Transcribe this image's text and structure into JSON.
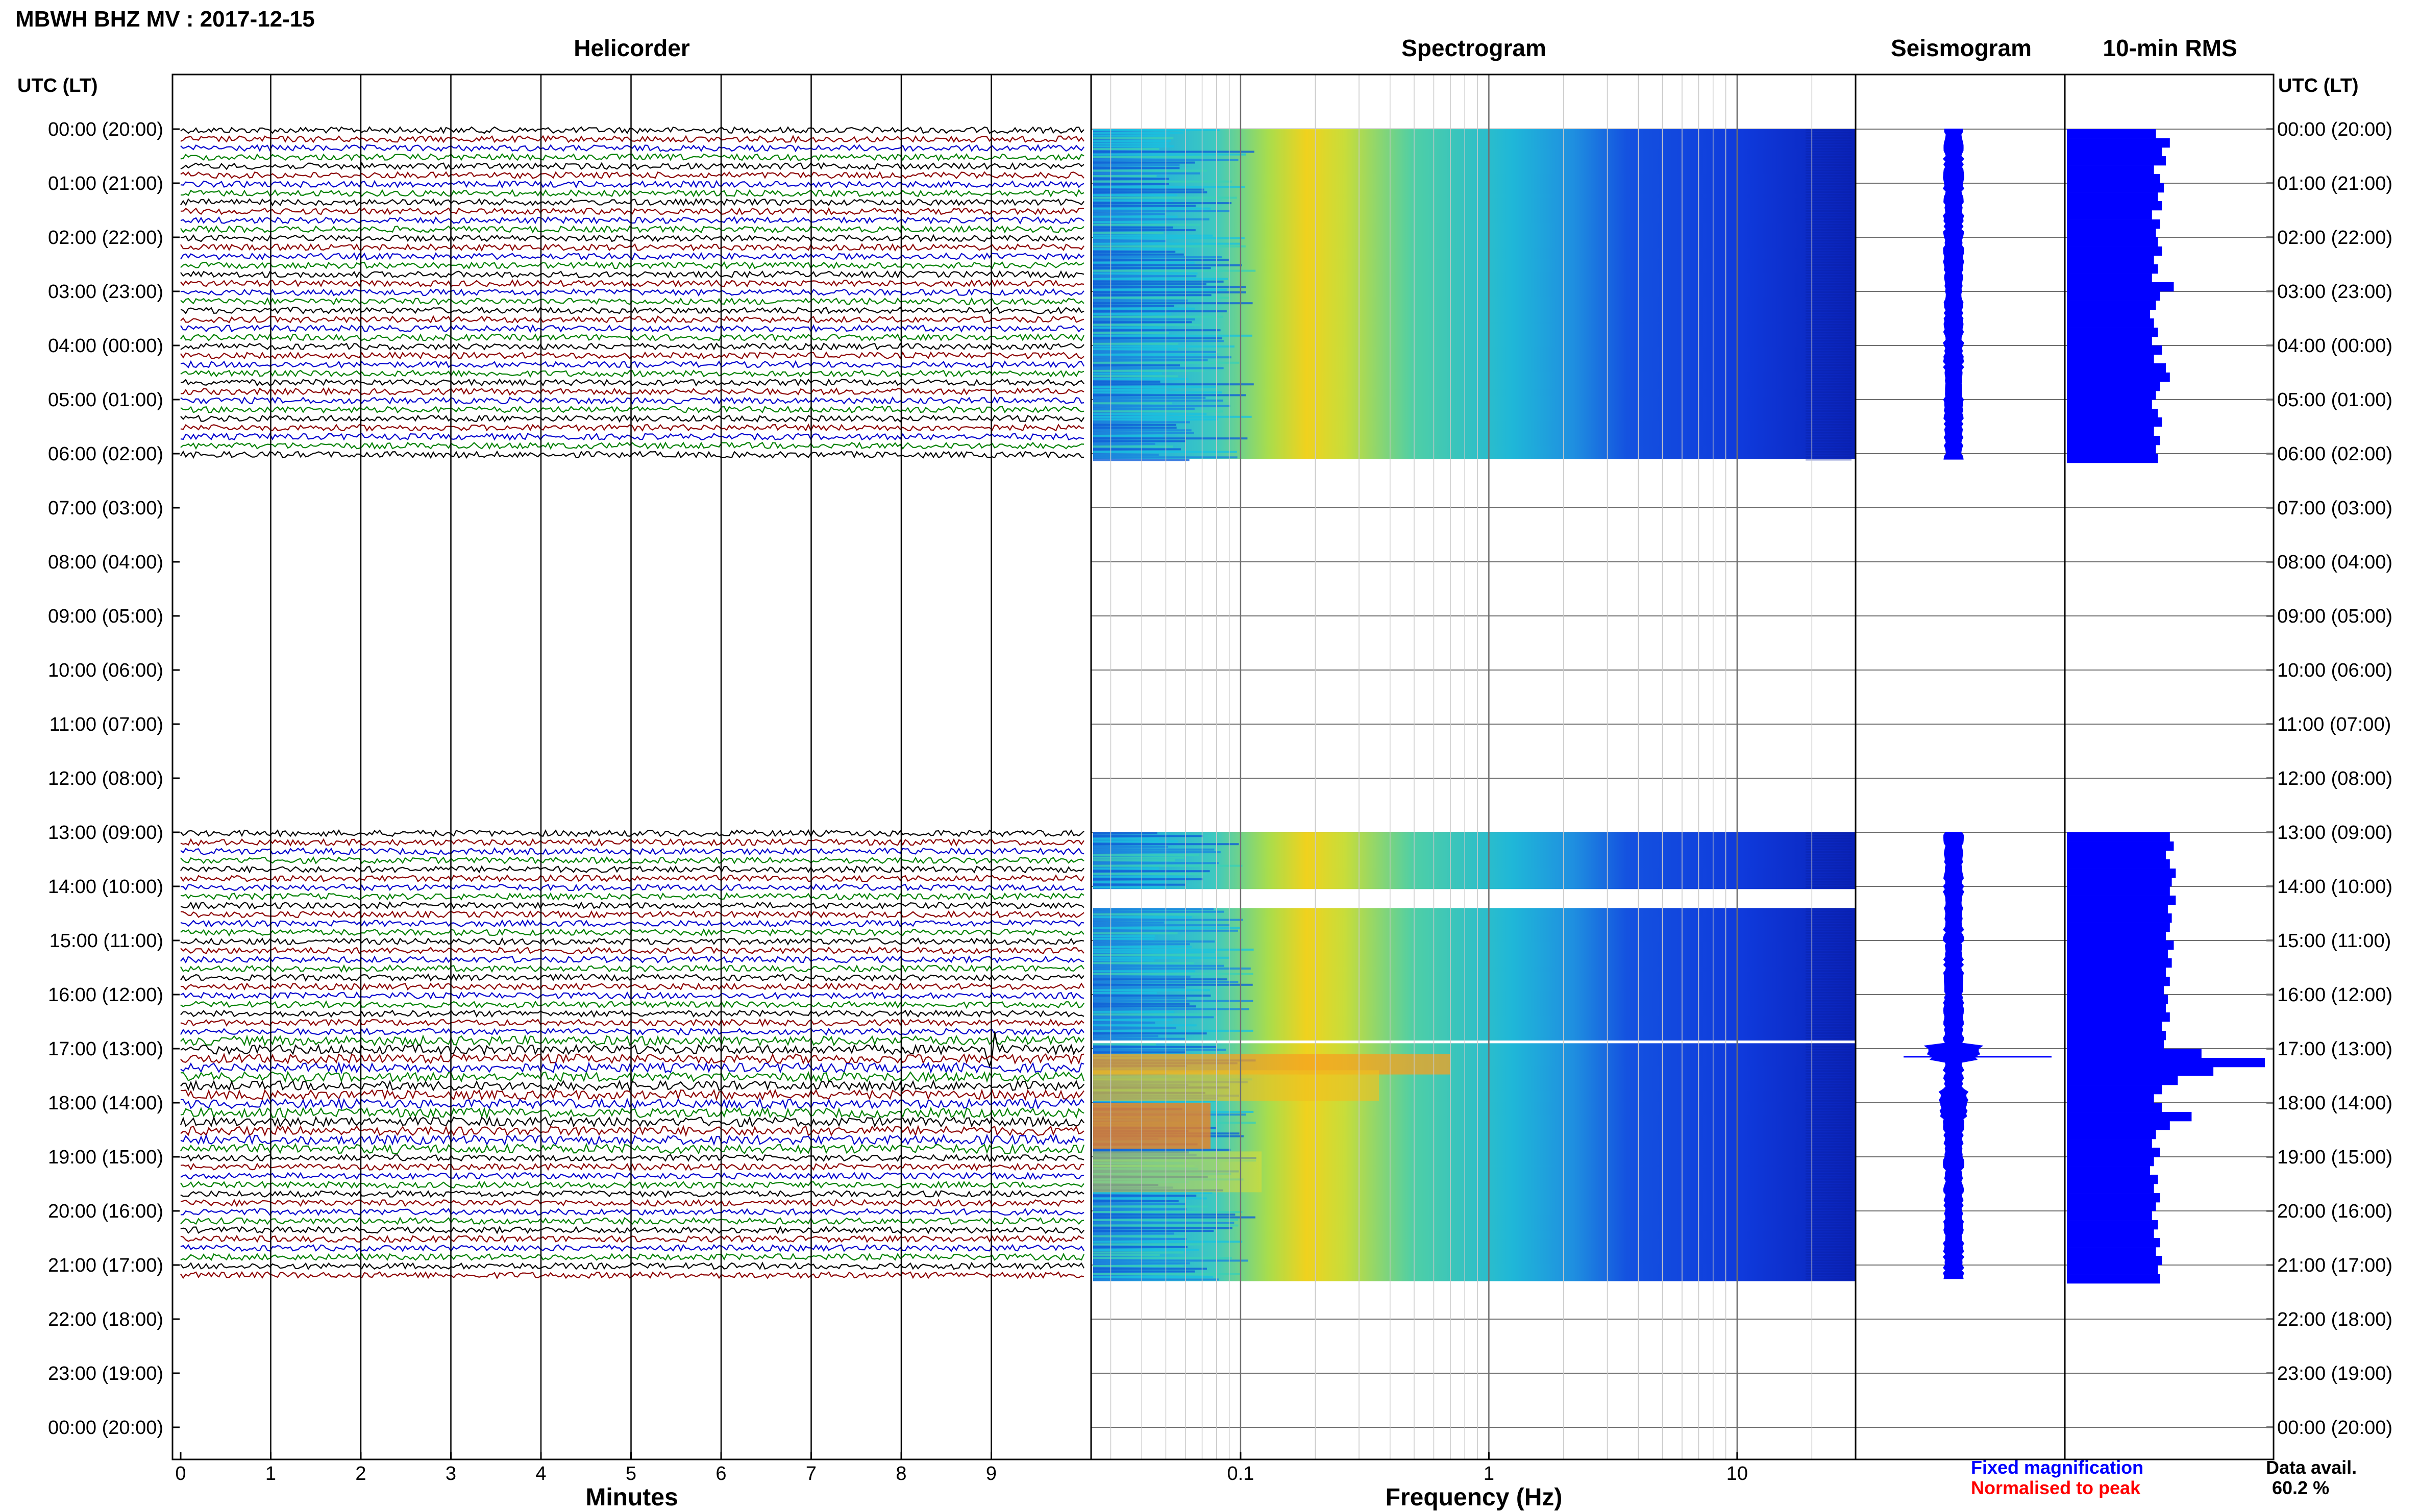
{
  "title": "MBWH BHZ MV : 2017-12-15",
  "panels": {
    "helicorder": "Helicorder",
    "spectrogram": "Spectrogram",
    "seismogram": "Seismogram",
    "rms": "10-min RMS"
  },
  "time_axis_label": "UTC (LT)",
  "time_ticks": [
    "00:00 (20:00)",
    "01:00 (21:00)",
    "02:00 (22:00)",
    "03:00 (23:00)",
    "04:00 (00:00)",
    "05:00 (01:00)",
    "06:00 (02:00)",
    "07:00 (03:00)",
    "08:00 (04:00)",
    "09:00 (05:00)",
    "10:00 (06:00)",
    "11:00 (07:00)",
    "12:00 (08:00)",
    "13:00 (09:00)",
    "14:00 (10:00)",
    "15:00 (11:00)",
    "16:00 (12:00)",
    "17:00 (13:00)",
    "18:00 (14:00)",
    "19:00 (15:00)",
    "20:00 (16:00)",
    "21:00 (17:00)",
    "22:00 (18:00)",
    "23:00 (19:00)",
    "00:00 (20:00)"
  ],
  "helicorder_xlabel": "Minutes",
  "helicorder_xticks": [
    "0",
    "1",
    "2",
    "3",
    "4",
    "5",
    "6",
    "7",
    "8",
    "9"
  ],
  "spectrogram_xlabel": "Frequency (Hz)",
  "spectrogram_xticks": [
    "0.1",
    "1",
    "10"
  ],
  "legend": {
    "fixed": "Fixed magnification",
    "normalised": "Normalised to peak",
    "fixed_color": "#0000ff",
    "normalised_color": "#ff0000"
  },
  "data_avail_label": "Data avail.",
  "data_avail_value": "60.2 %",
  "trace_colors": [
    "#000000",
    "#8b0000",
    "#0000cd",
    "#008000"
  ],
  "chart_data": {
    "type": "heatmap",
    "title": "MBWH BHZ MV : 2017-12-15",
    "time_range_hours": [
      0,
      24
    ],
    "data_segments_utc_hours": [
      [
        0.0,
        6.1
      ],
      [
        13.0,
        21.3
      ]
    ],
    "spectrogram_gaps_utc_hours": [
      [
        0.9,
        0.95
      ],
      [
        14.05,
        14.4
      ],
      [
        16.85,
        16.9
      ]
    ],
    "spectrogram_freq_range_hz": [
      0.025,
      30
    ],
    "spectrogram_peak_freq_hz": 0.2,
    "rms_10min": [
      {
        "utc_hour": 0.0,
        "value": 0.45
      },
      {
        "utc_hour": 0.17,
        "value": 0.52
      },
      {
        "utc_hour": 0.33,
        "value": 0.48
      },
      {
        "utc_hour": 0.5,
        "value": 0.5
      },
      {
        "utc_hour": 0.67,
        "value": 0.44
      },
      {
        "utc_hour": 0.83,
        "value": 0.47
      },
      {
        "utc_hour": 1.0,
        "value": 0.49
      },
      {
        "utc_hour": 1.17,
        "value": 0.46
      },
      {
        "utc_hour": 1.33,
        "value": 0.48
      },
      {
        "utc_hour": 1.5,
        "value": 0.43
      },
      {
        "utc_hour": 1.67,
        "value": 0.47
      },
      {
        "utc_hour": 1.83,
        "value": 0.45
      },
      {
        "utc_hour": 2.0,
        "value": 0.46
      },
      {
        "utc_hour": 2.17,
        "value": 0.48
      },
      {
        "utc_hour": 2.33,
        "value": 0.44
      },
      {
        "utc_hour": 2.5,
        "value": 0.46
      },
      {
        "utc_hour": 2.67,
        "value": 0.43
      },
      {
        "utc_hour": 2.83,
        "value": 0.54
      },
      {
        "utc_hour": 3.0,
        "value": 0.47
      },
      {
        "utc_hour": 3.17,
        "value": 0.45
      },
      {
        "utc_hour": 3.33,
        "value": 0.42
      },
      {
        "utc_hour": 3.5,
        "value": 0.44
      },
      {
        "utc_hour": 3.67,
        "value": 0.46
      },
      {
        "utc_hour": 3.83,
        "value": 0.43
      },
      {
        "utc_hour": 4.0,
        "value": 0.48
      },
      {
        "utc_hour": 4.17,
        "value": 0.44
      },
      {
        "utc_hour": 4.33,
        "value": 0.5
      },
      {
        "utc_hour": 4.5,
        "value": 0.52
      },
      {
        "utc_hour": 4.67,
        "value": 0.47
      },
      {
        "utc_hour": 4.83,
        "value": 0.45
      },
      {
        "utc_hour": 5.0,
        "value": 0.43
      },
      {
        "utc_hour": 5.17,
        "value": 0.46
      },
      {
        "utc_hour": 5.33,
        "value": 0.48
      },
      {
        "utc_hour": 5.5,
        "value": 0.44
      },
      {
        "utc_hour": 5.67,
        "value": 0.47
      },
      {
        "utc_hour": 5.83,
        "value": 0.45
      },
      {
        "utc_hour": 6.0,
        "value": 0.46
      },
      {
        "utc_hour": 13.0,
        "value": 0.52
      },
      {
        "utc_hour": 13.17,
        "value": 0.54
      },
      {
        "utc_hour": 13.33,
        "value": 0.5
      },
      {
        "utc_hour": 13.5,
        "value": 0.52
      },
      {
        "utc_hour": 13.67,
        "value": 0.55
      },
      {
        "utc_hour": 13.83,
        "value": 0.53
      },
      {
        "utc_hour": 14.0,
        "value": 0.52
      },
      {
        "utc_hour": 14.17,
        "value": 0.55
      },
      {
        "utc_hour": 14.33,
        "value": 0.51
      },
      {
        "utc_hour": 14.5,
        "value": 0.53
      },
      {
        "utc_hour": 14.67,
        "value": 0.52
      },
      {
        "utc_hour": 14.83,
        "value": 0.5
      },
      {
        "utc_hour": 15.0,
        "value": 0.54
      },
      {
        "utc_hour": 15.17,
        "value": 0.51
      },
      {
        "utc_hour": 15.33,
        "value": 0.53
      },
      {
        "utc_hour": 15.5,
        "value": 0.5
      },
      {
        "utc_hour": 15.67,
        "value": 0.52
      },
      {
        "utc_hour": 15.83,
        "value": 0.49
      },
      {
        "utc_hour": 16.0,
        "value": 0.51
      },
      {
        "utc_hour": 16.17,
        "value": 0.5
      },
      {
        "utc_hour": 16.33,
        "value": 0.52
      },
      {
        "utc_hour": 16.5,
        "value": 0.48
      },
      {
        "utc_hour": 16.67,
        "value": 0.5
      },
      {
        "utc_hour": 16.83,
        "value": 0.49
      },
      {
        "utc_hour": 17.0,
        "value": 0.68
      },
      {
        "utc_hour": 17.17,
        "value": 1.0
      },
      {
        "utc_hour": 17.33,
        "value": 0.74
      },
      {
        "utc_hour": 17.5,
        "value": 0.56
      },
      {
        "utc_hour": 17.67,
        "value": 0.48
      },
      {
        "utc_hour": 17.83,
        "value": 0.44
      },
      {
        "utc_hour": 18.0,
        "value": 0.48
      },
      {
        "utc_hour": 18.17,
        "value": 0.63
      },
      {
        "utc_hour": 18.33,
        "value": 0.52
      },
      {
        "utc_hour": 18.5,
        "value": 0.45
      },
      {
        "utc_hour": 18.67,
        "value": 0.43
      },
      {
        "utc_hour": 18.83,
        "value": 0.47
      },
      {
        "utc_hour": 19.0,
        "value": 0.44
      },
      {
        "utc_hour": 19.17,
        "value": 0.42
      },
      {
        "utc_hour": 19.33,
        "value": 0.46
      },
      {
        "utc_hour": 19.5,
        "value": 0.44
      },
      {
        "utc_hour": 19.67,
        "value": 0.47
      },
      {
        "utc_hour": 19.83,
        "value": 0.45
      },
      {
        "utc_hour": 20.0,
        "value": 0.43
      },
      {
        "utc_hour": 20.17,
        "value": 0.46
      },
      {
        "utc_hour": 20.33,
        "value": 0.44
      },
      {
        "utc_hour": 20.5,
        "value": 0.47
      },
      {
        "utc_hour": 20.67,
        "value": 0.45
      },
      {
        "utc_hour": 20.83,
        "value": 0.48
      },
      {
        "utc_hour": 21.0,
        "value": 0.46
      },
      {
        "utc_hour": 21.17,
        "value": 0.47
      }
    ]
  }
}
